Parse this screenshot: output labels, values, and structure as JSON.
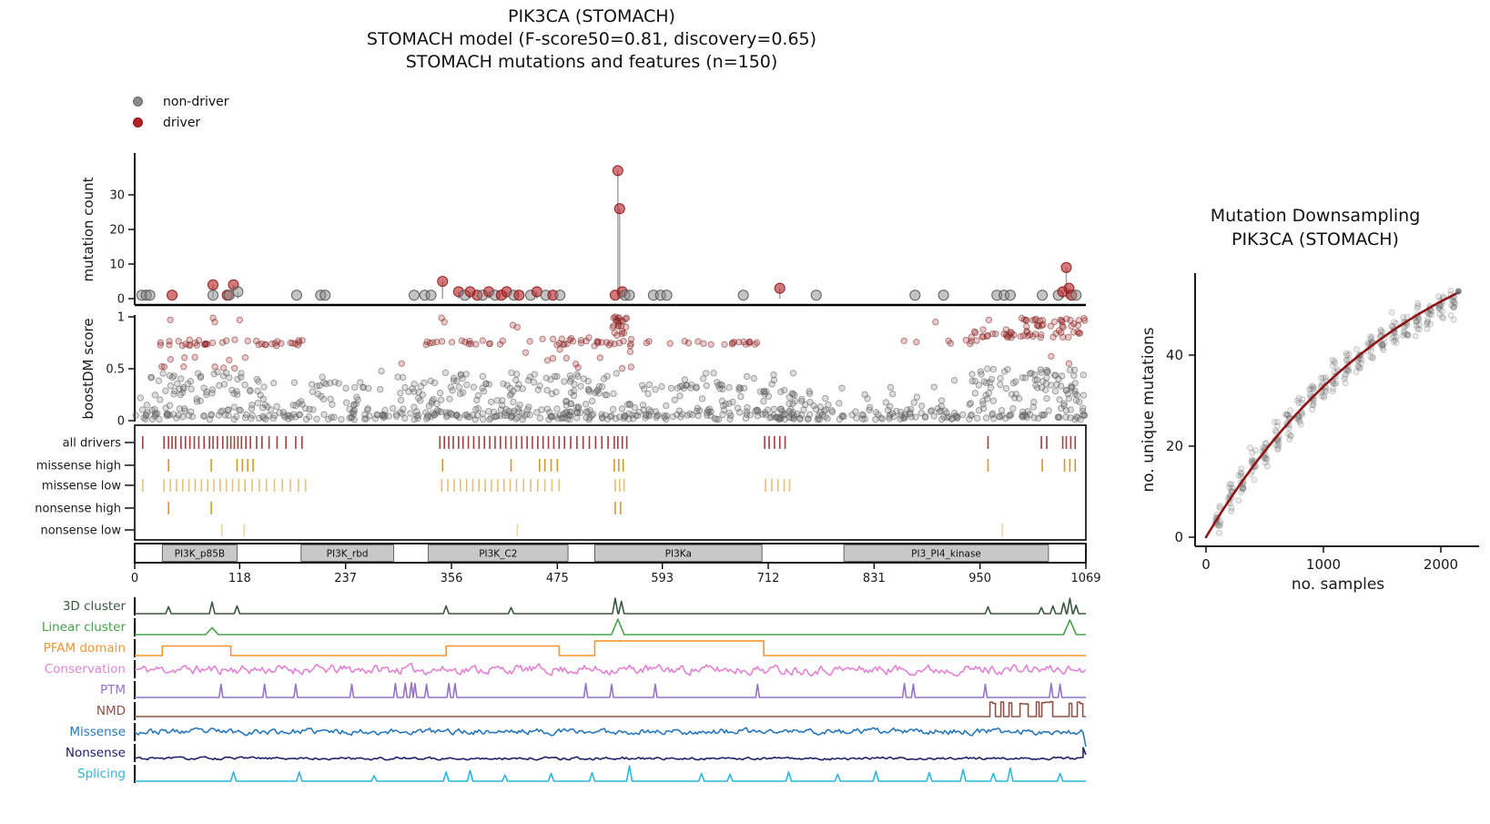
{
  "title": {
    "line1": "PIK3CA (STOMACH)",
    "line2": "STOMACH model (F-score50=0.81, discovery=0.65)",
    "line3": "STOMACH mutations and features (n=150)"
  },
  "legend": {
    "items": [
      {
        "label": "non-driver",
        "color": "#8a8a8a"
      },
      {
        "label": "driver",
        "color": "#b52025"
      }
    ]
  },
  "colors": {
    "non_driver": "#8a8a8a",
    "driver": "#b52025",
    "stem": "#9a9a9a",
    "axis": "#000000",
    "downsampling_curve": "#8e1515",
    "domain_box_fill": "#c8c8c8"
  },
  "chart_data": [
    {
      "id": "mutation_count",
      "type": "lollipop",
      "ylabel": "mutation count",
      "yticks": [
        0,
        10,
        20,
        30
      ],
      "ylim": [
        0,
        40
      ],
      "xlim": [
        0,
        1069
      ],
      "classes": {
        "g": "non-driver",
        "r": "driver"
      },
      "points": [
        [
          8,
          1,
          "g"
        ],
        [
          13,
          1,
          "g"
        ],
        [
          17,
          1,
          "g"
        ],
        [
          42,
          1,
          "r"
        ],
        [
          88,
          4,
          "r"
        ],
        [
          88,
          1,
          "g"
        ],
        [
          104,
          1,
          "r"
        ],
        [
          106,
          1,
          "g"
        ],
        [
          111,
          4,
          "r"
        ],
        [
          116,
          2,
          "g"
        ],
        [
          182,
          1,
          "g"
        ],
        [
          209,
          1,
          "g"
        ],
        [
          214,
          1,
          "g"
        ],
        [
          314,
          1,
          "g"
        ],
        [
          326,
          1,
          "g"
        ],
        [
          333,
          1,
          "g"
        ],
        [
          346,
          5,
          "r"
        ],
        [
          364,
          2,
          "r"
        ],
        [
          371,
          1,
          "g"
        ],
        [
          377,
          2,
          "r"
        ],
        [
          385,
          1,
          "r"
        ],
        [
          391,
          1,
          "g"
        ],
        [
          398,
          2,
          "r"
        ],
        [
          405,
          1,
          "g"
        ],
        [
          412,
          1,
          "r"
        ],
        [
          418,
          2,
          "r"
        ],
        [
          426,
          1,
          "g"
        ],
        [
          432,
          1,
          "r"
        ],
        [
          445,
          1,
          "g"
        ],
        [
          452,
          2,
          "r"
        ],
        [
          462,
          1,
          "g"
        ],
        [
          470,
          1,
          "r"
        ],
        [
          478,
          1,
          "g"
        ],
        [
          540,
          1,
          "r"
        ],
        [
          543,
          37,
          "r"
        ],
        [
          545,
          26,
          "r"
        ],
        [
          548,
          2,
          "r"
        ],
        [
          551,
          1,
          "g"
        ],
        [
          556,
          1,
          "g"
        ],
        [
          583,
          1,
          "g"
        ],
        [
          591,
          1,
          "g"
        ],
        [
          598,
          1,
          "g"
        ],
        [
          684,
          1,
          "g"
        ],
        [
          725,
          3,
          "r"
        ],
        [
          766,
          1,
          "g"
        ],
        [
          877,
          1,
          "g"
        ],
        [
          909,
          1,
          "g"
        ],
        [
          969,
          1,
          "g"
        ],
        [
          977,
          1,
          "g"
        ],
        [
          984,
          1,
          "g"
        ],
        [
          1020,
          1,
          "g"
        ],
        [
          1038,
          1,
          "g"
        ],
        [
          1043,
          2,
          "r"
        ],
        [
          1047,
          9,
          "r"
        ],
        [
          1050,
          3,
          "r"
        ],
        [
          1053,
          1,
          "r"
        ],
        [
          1058,
          1,
          "g"
        ]
      ]
    },
    {
      "id": "boostdm_score",
      "type": "scatter",
      "ylabel": "boostDM score",
      "yticks": [
        0,
        0.5,
        1
      ],
      "ylim": [
        0,
        1
      ],
      "xlim": [
        0,
        1069
      ],
      "clusters": [
        [
          0,
          1069,
          0.01,
          0.06,
          260,
          "g"
        ],
        [
          0,
          1069,
          0.05,
          0.12,
          200,
          "g"
        ],
        [
          0,
          1069,
          0.12,
          0.22,
          110,
          "g"
        ],
        [
          0,
          1069,
          0.22,
          0.48,
          70,
          "g"
        ],
        [
          15,
          145,
          0.24,
          0.46,
          45,
          "g"
        ],
        [
          295,
          545,
          0.24,
          0.46,
          70,
          "g"
        ],
        [
          570,
          700,
          0.3,
          0.35,
          22,
          "g"
        ],
        [
          940,
          1069,
          0.24,
          0.5,
          60,
          "g"
        ],
        [
          200,
          280,
          0.3,
          0.38,
          12,
          "g"
        ],
        [
          640,
          760,
          0.22,
          0.3,
          15,
          "g"
        ],
        [
          25,
          190,
          0.72,
          0.78,
          40,
          "r"
        ],
        [
          320,
          430,
          0.73,
          0.78,
          18,
          "r"
        ],
        [
          435,
          565,
          0.72,
          0.8,
          30,
          "r"
        ],
        [
          575,
          705,
          0.73,
          0.77,
          20,
          "r"
        ],
        [
          25,
          140,
          0.5,
          0.68,
          10,
          "r"
        ],
        [
          435,
          560,
          0.5,
          0.7,
          10,
          "r"
        ],
        [
          940,
          1069,
          0.8,
          0.88,
          40,
          "r"
        ],
        [
          995,
          1069,
          0.9,
          0.99,
          30,
          "r"
        ],
        [
          537,
          553,
          0.82,
          1.0,
          22,
          "r"
        ],
        [
          860,
          950,
          0.74,
          0.78,
          8,
          "r"
        ]
      ],
      "points": [
        [
          40,
          0.97,
          "r"
        ],
        [
          88,
          0.99,
          "r"
        ],
        [
          90,
          0.95,
          "r"
        ],
        [
          118,
          0.97,
          "r"
        ],
        [
          345,
          0.99,
          "r"
        ],
        [
          348,
          0.95,
          "r"
        ],
        [
          425,
          0.92,
          "r"
        ],
        [
          430,
          0.9,
          "r"
        ],
        [
          540,
          1.0,
          "r"
        ],
        [
          960,
          0.97,
          "r"
        ],
        [
          900,
          0.95,
          "r"
        ],
        [
          1030,
          0.62,
          "r"
        ],
        [
          1050,
          0.55,
          "r"
        ],
        [
          470,
          0.6,
          "r"
        ],
        [
          300,
          0.55,
          "r"
        ],
        [
          55,
          0.52,
          "r"
        ]
      ]
    },
    {
      "id": "driver_tracks",
      "type": "rug",
      "rows": [
        {
          "label": "all drivers",
          "color": "#9e3434",
          "positions": [
            9,
            33,
            38,
            42,
            46,
            52,
            57,
            62,
            67,
            72,
            78,
            84,
            88,
            93,
            99,
            104,
            108,
            112,
            116,
            120,
            125,
            130,
            137,
            143,
            151,
            160,
            170,
            181,
            188,
            343,
            348,
            353,
            358,
            364,
            369,
            375,
            381,
            387,
            393,
            399,
            405,
            411,
            417,
            423,
            429,
            435,
            441,
            447,
            453,
            459,
            465,
            471,
            477,
            483,
            490,
            497,
            504,
            511,
            518,
            525,
            532,
            539,
            543,
            548,
            553,
            708,
            713,
            719,
            725,
            731,
            959,
            1019,
            1025,
            1043,
            1047,
            1052,
            1057
          ]
        },
        {
          "label": "missense high",
          "color": "#d0951c",
          "positions": [
            38,
            86,
            115,
            121,
            127,
            133,
            346,
            423,
            455,
            461,
            468,
            475,
            539,
            544,
            549,
            959,
            1020,
            1045,
            1051,
            1057
          ]
        },
        {
          "label": "missense low",
          "color": "#e4bd73",
          "positions": [
            9,
            33,
            40,
            47,
            54,
            61,
            68,
            75,
            82,
            89,
            96,
            103,
            110,
            117,
            124,
            132,
            140,
            148,
            157,
            166,
            175,
            184,
            192,
            345,
            352,
            359,
            366,
            373,
            380,
            387,
            394,
            401,
            408,
            415,
            422,
            429,
            437,
            445,
            453,
            461,
            469,
            477,
            540,
            545,
            550,
            709,
            716,
            723,
            730,
            736
          ]
        },
        {
          "label": "nonsense high",
          "color": "#d0951c",
          "positions": [
            38,
            86,
            540,
            546
          ]
        },
        {
          "label": "nonsense low",
          "color": "#ecd39e",
          "positions": [
            98,
            123,
            430,
            975
          ]
        }
      ]
    },
    {
      "id": "domain_axis",
      "type": "domain_bar",
      "xticks": [
        0,
        118,
        237,
        356,
        475,
        593,
        712,
        831,
        950,
        1069
      ],
      "domains": [
        {
          "name": "PI3K_p85B",
          "start": 31,
          "end": 115
        },
        {
          "name": "PI3K_rbd",
          "start": 187,
          "end": 291
        },
        {
          "name": "PI3K_C2",
          "start": 330,
          "end": 487
        },
        {
          "name": "PI3Ka",
          "start": 517,
          "end": 705
        },
        {
          "name": "PI3_PI4_kinase",
          "start": 797,
          "end": 1027
        }
      ]
    },
    {
      "id": "features",
      "type": "line_tracks",
      "tracks": [
        {
          "label": "3D cluster",
          "color": "#3a5741",
          "kind": "spikes",
          "w": 3,
          "spikes": [
            [
              38,
              0.45
            ],
            [
              87,
              0.75
            ],
            [
              115,
              0.5
            ],
            [
              350,
              0.5
            ],
            [
              423,
              0.4
            ],
            [
              540,
              1
            ],
            [
              547,
              0.8
            ],
            [
              959,
              0.45
            ],
            [
              1019,
              0.4
            ],
            [
              1032,
              0.5
            ],
            [
              1044,
              0.7
            ],
            [
              1051,
              1
            ],
            [
              1058,
              0.55
            ]
          ]
        },
        {
          "label": "Linear cluster",
          "color": "#46a349",
          "kind": "spikes",
          "w": 7,
          "spikes": [
            [
              87,
              0.45
            ],
            [
              543,
              1
            ],
            [
              1051,
              0.95
            ]
          ]
        },
        {
          "label": "PFAM domain",
          "color": "#f79433",
          "kind": "steps",
          "steps": [
            [
              31,
              108,
              0.62
            ],
            [
              350,
              477,
              0.62
            ],
            [
              517,
              707,
              0.95
            ]
          ]
        },
        {
          "label": "Conservation",
          "color": "#e283d3",
          "kind": "noise",
          "amp": 0.5,
          "base": 0.45,
          "seed": 11
        },
        {
          "label": "PTM",
          "color": "#9673c6",
          "kind": "spikes",
          "w": 2,
          "spikes": [
            [
              97,
              0.85
            ],
            [
              146,
              0.85
            ],
            [
              181,
              0.85
            ],
            [
              244,
              0.85
            ],
            [
              293,
              0.9
            ],
            [
              304,
              0.9
            ],
            [
              311,
              0.95
            ],
            [
              315,
              0.9
            ],
            [
              328,
              0.85
            ],
            [
              353,
              0.9
            ],
            [
              360,
              0.9
            ],
            [
              507,
              0.9
            ],
            [
              536,
              0.85
            ],
            [
              585,
              0.85
            ],
            [
              700,
              0.85
            ],
            [
              865,
              0.9
            ],
            [
              875,
              0.85
            ],
            [
              956,
              0.85
            ],
            [
              1030,
              0.9
            ],
            [
              1040,
              0.85
            ]
          ]
        },
        {
          "label": "NMD",
          "color": "#8e5249",
          "kind": "nmd",
          "start": 955,
          "seed": 7
        },
        {
          "label": "Missense",
          "color": "#2878be",
          "kind": "noise",
          "amp": 0.32,
          "base": 0.5,
          "seed": 23,
          "end_drop": true
        },
        {
          "label": "Nonsense",
          "color": "#20206b",
          "kind": "noise",
          "amp": 0.15,
          "base": 0.12,
          "seed": 31,
          "end_spike": true
        },
        {
          "label": "Splicing",
          "color": "#2ab7dc",
          "kind": "spikes",
          "w": 3,
          "spikes": [
            [
              111,
              0.6
            ],
            [
              185,
              0.6
            ],
            [
              269,
              0.35
            ],
            [
              350,
              0.6
            ],
            [
              377,
              0.7
            ],
            [
              416,
              0.4
            ],
            [
              468,
              0.5
            ],
            [
              514,
              0.55
            ],
            [
              556,
              1
            ],
            [
              637,
              0.5
            ],
            [
              669,
              0.45
            ],
            [
              735,
              0.6
            ],
            [
              790,
              0.45
            ],
            [
              833,
              0.65
            ],
            [
              893,
              0.55
            ],
            [
              931,
              0.75
            ],
            [
              965,
              0.5
            ],
            [
              984,
              0.85
            ],
            [
              1040,
              0.5
            ]
          ]
        }
      ]
    },
    {
      "id": "downsampling",
      "type": "scatter_line",
      "title_line1": "Mutation Downsampling",
      "title_line2": "PIK3CA (STOMACH)",
      "xlabel": "no. samples",
      "ylabel": "no. unique mutations",
      "xticks": [
        0,
        1000,
        2000
      ],
      "yticks": [
        0,
        20,
        40
      ],
      "xlim": [
        0,
        2200
      ],
      "ylim": [
        0,
        56
      ],
      "columns": {
        "x": [
          100,
          200,
          300,
          400,
          500,
          600,
          700,
          800,
          900,
          1000,
          1100,
          1200,
          1300,
          1400,
          1500,
          1600,
          1700,
          1800,
          1900,
          2000,
          2100
        ],
        "mean": [
          4.2,
          8.2,
          12.0,
          15.5,
          18.9,
          22.0,
          24.9,
          27.7,
          30.3,
          32.8,
          35.1,
          37.3,
          39.3,
          41.3,
          43.1,
          44.8,
          46.4,
          47.9,
          49.4,
          50.7,
          52.0
        ]
      },
      "n_per_column": 16,
      "curve": {
        "A": 76,
        "tau": 1750,
        "x_end": 2150
      },
      "end_point": [
        2150,
        54
      ]
    }
  ]
}
